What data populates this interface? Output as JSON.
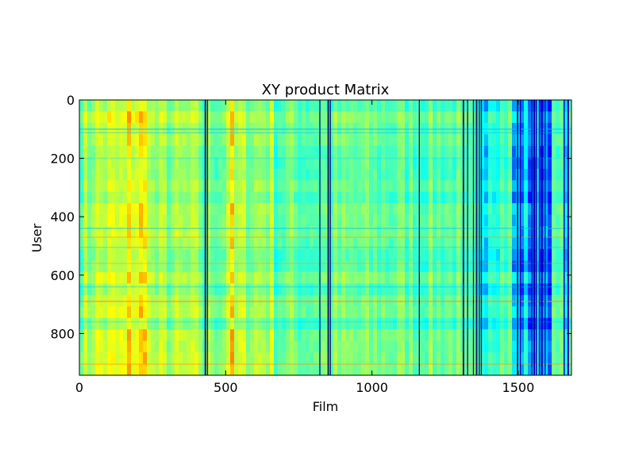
{
  "chart_data": {
    "type": "heatmap",
    "title": "XY product Matrix",
    "xlabel": "Film",
    "ylabel": "User",
    "xlim": [
      0,
      1682
    ],
    "ylim": [
      943,
      0
    ],
    "x_ticks": [
      0,
      500,
      1000,
      1500
    ],
    "y_ticks": [
      0,
      200,
      400,
      600,
      800
    ],
    "n_rows": 943,
    "n_cols": 1682,
    "colormap": "jet",
    "colormap_stops": [
      "#00007f",
      "#0000ff",
      "#00ffff",
      "#7fff7f",
      "#ffff00",
      "#ff0000",
      "#7f0000"
    ],
    "column_bands": [
      {
        "x": [
          0,
          40
        ],
        "level": 0.52
      },
      {
        "x": [
          40,
          160
        ],
        "level": 0.58
      },
      {
        "x": [
          160,
          240
        ],
        "level": 0.64
      },
      {
        "x": [
          240,
          420
        ],
        "level": 0.52
      },
      {
        "x": [
          420,
          440
        ],
        "level": 0.44
      },
      {
        "x": [
          440,
          500
        ],
        "level": 0.5
      },
      {
        "x": [
          500,
          530
        ],
        "level": 0.62
      },
      {
        "x": [
          530,
          660
        ],
        "level": 0.54
      },
      {
        "x": [
          660,
          1300
        ],
        "level": 0.46
      },
      {
        "x": [
          1300,
          1400
        ],
        "level": 0.38
      },
      {
        "x": [
          1400,
          1480
        ],
        "level": 0.44
      },
      {
        "x": [
          1480,
          1610
        ],
        "level": 0.28
      },
      {
        "x": [
          1610,
          1682
        ],
        "level": 0.4
      }
    ],
    "dark_columns": [
      428,
      436,
      820,
      848,
      856,
      1160,
      1310,
      1325,
      1345,
      1355,
      1365,
      1372,
      1495,
      1505,
      1545,
      1552,
      1560,
      1570,
      1578,
      1590,
      1655,
      1668
    ],
    "row_bands": [
      {
        "y": 100,
        "shift": -0.18
      },
      {
        "y": 112,
        "shift": -0.12
      },
      {
        "y": 200,
        "shift": -0.08
      },
      {
        "y": 440,
        "shift": -0.15
      },
      {
        "y": 470,
        "shift": 0.1
      },
      {
        "y": 505,
        "shift": -0.1
      },
      {
        "y": 560,
        "shift": 0.08
      },
      {
        "y": 640,
        "shift": -0.12
      },
      {
        "y": 690,
        "shift": 0.18
      },
      {
        "y": 760,
        "shift": -0.08
      },
      {
        "y": 905,
        "shift": 0.12
      }
    ]
  }
}
